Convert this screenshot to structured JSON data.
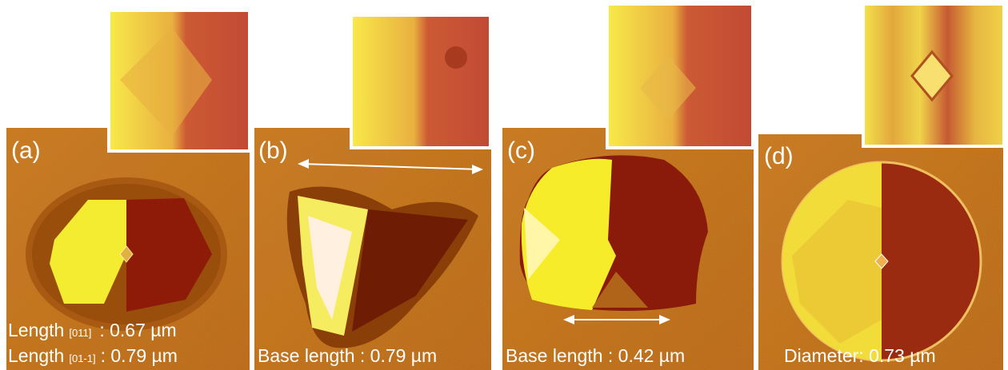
{
  "panels": [
    {
      "label": "(a)",
      "captions": [
        {
          "text": "Length",
          "subscript": "[011]",
          "value": ": 0.67 µm"
        },
        {
          "text": "Length",
          "subscript": "[01-1]",
          "value": ": 0.79 µm"
        }
      ]
    },
    {
      "label": "(b)",
      "captions": [
        {
          "text": "Base length : 0.79 µm"
        }
      ]
    },
    {
      "label": "(c)",
      "captions": [
        {
          "text": "Base length : 0.42 µm"
        }
      ]
    },
    {
      "label": "(d)",
      "captions": [
        {
          "text": "Diameter: 0.73 µm"
        }
      ]
    }
  ]
}
